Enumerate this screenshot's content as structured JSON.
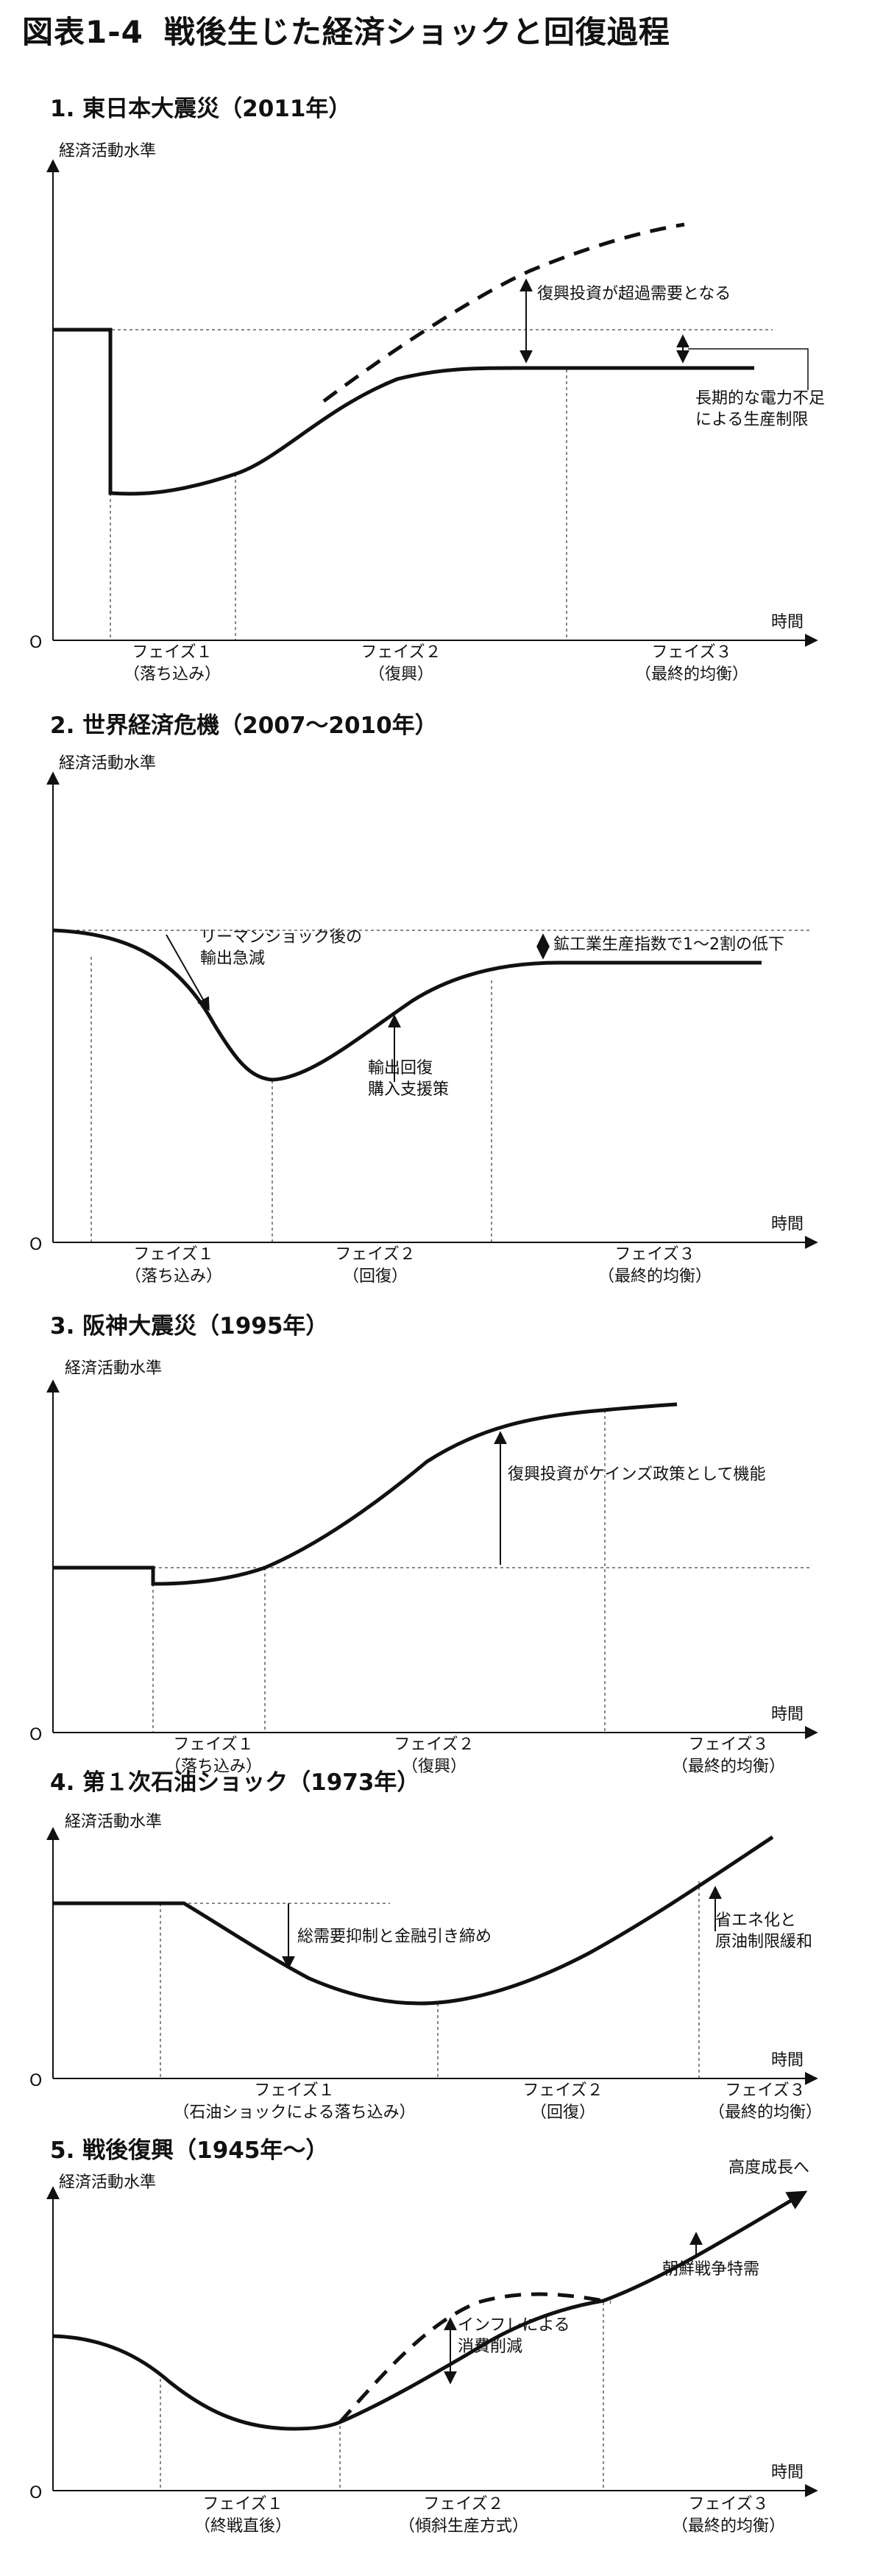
{
  "figure": {
    "number": "図表1-4",
    "title": "戦後生じた経済ショックと回復過程"
  },
  "common": {
    "y_label": "経済活動水準",
    "x_label": "時間",
    "origin": "O"
  },
  "panels": [
    {
      "title": "1. 東日本大震災（2011年）",
      "annotations": [
        "復興投資が超過需要となる",
        "長期的な電力不足",
        "による生産制限"
      ],
      "phases": [
        {
          "name": "フェイズ１",
          "desc": "（落ち込み）"
        },
        {
          "name": "フェイズ２",
          "desc": "（復興）"
        },
        {
          "name": "フェイズ３",
          "desc": "（最終的均衡）"
        }
      ]
    },
    {
      "title": "2. 世界経済危機（2007〜2010年）",
      "annotations": [
        "リーマンショック後の",
        "輸出急減",
        "鉱工業生産指数で1〜2割の低下",
        "輸出回復",
        "購入支援策"
      ],
      "phases": [
        {
          "name": "フェイズ１",
          "desc": "（落ち込み）"
        },
        {
          "name": "フェイズ２",
          "desc": "（回復）"
        },
        {
          "name": "フェイズ３",
          "desc": "（最終的均衡）"
        }
      ]
    },
    {
      "title": "3. 阪神大震災（1995年）",
      "annotations": [
        "復興投資がケインズ政策として機能"
      ],
      "phases": [
        {
          "name": "フェイズ１",
          "desc": "（落ち込み）"
        },
        {
          "name": "フェイズ２",
          "desc": "（復興）"
        },
        {
          "name": "フェイズ３",
          "desc": "（最終的均衡）"
        }
      ]
    },
    {
      "title": "4. 第１次石油ショック（1973年）",
      "annotations": [
        "総需要抑制と金融引き締め",
        "省エネ化と",
        "原油制限緩和"
      ],
      "phases": [
        {
          "name": "フェイズ１",
          "desc": "（石油ショックによる落ち込み）"
        },
        {
          "name": "フェイズ２",
          "desc": "（回復）"
        },
        {
          "name": "フェイズ３",
          "desc": "（最終的均衡）"
        }
      ]
    },
    {
      "title": "5. 戦後復興（1945年〜）",
      "annotations": [
        "高度成長へ",
        "インフレによる",
        "消費削減",
        "朝鮮戦争特需"
      ],
      "phases": [
        {
          "name": "フェイズ１",
          "desc": "（終戦直後）"
        },
        {
          "name": "フェイズ２",
          "desc": "（傾斜生産方式）"
        },
        {
          "name": "フェイズ３",
          "desc": "（最終的均衡）"
        }
      ]
    }
  ]
}
